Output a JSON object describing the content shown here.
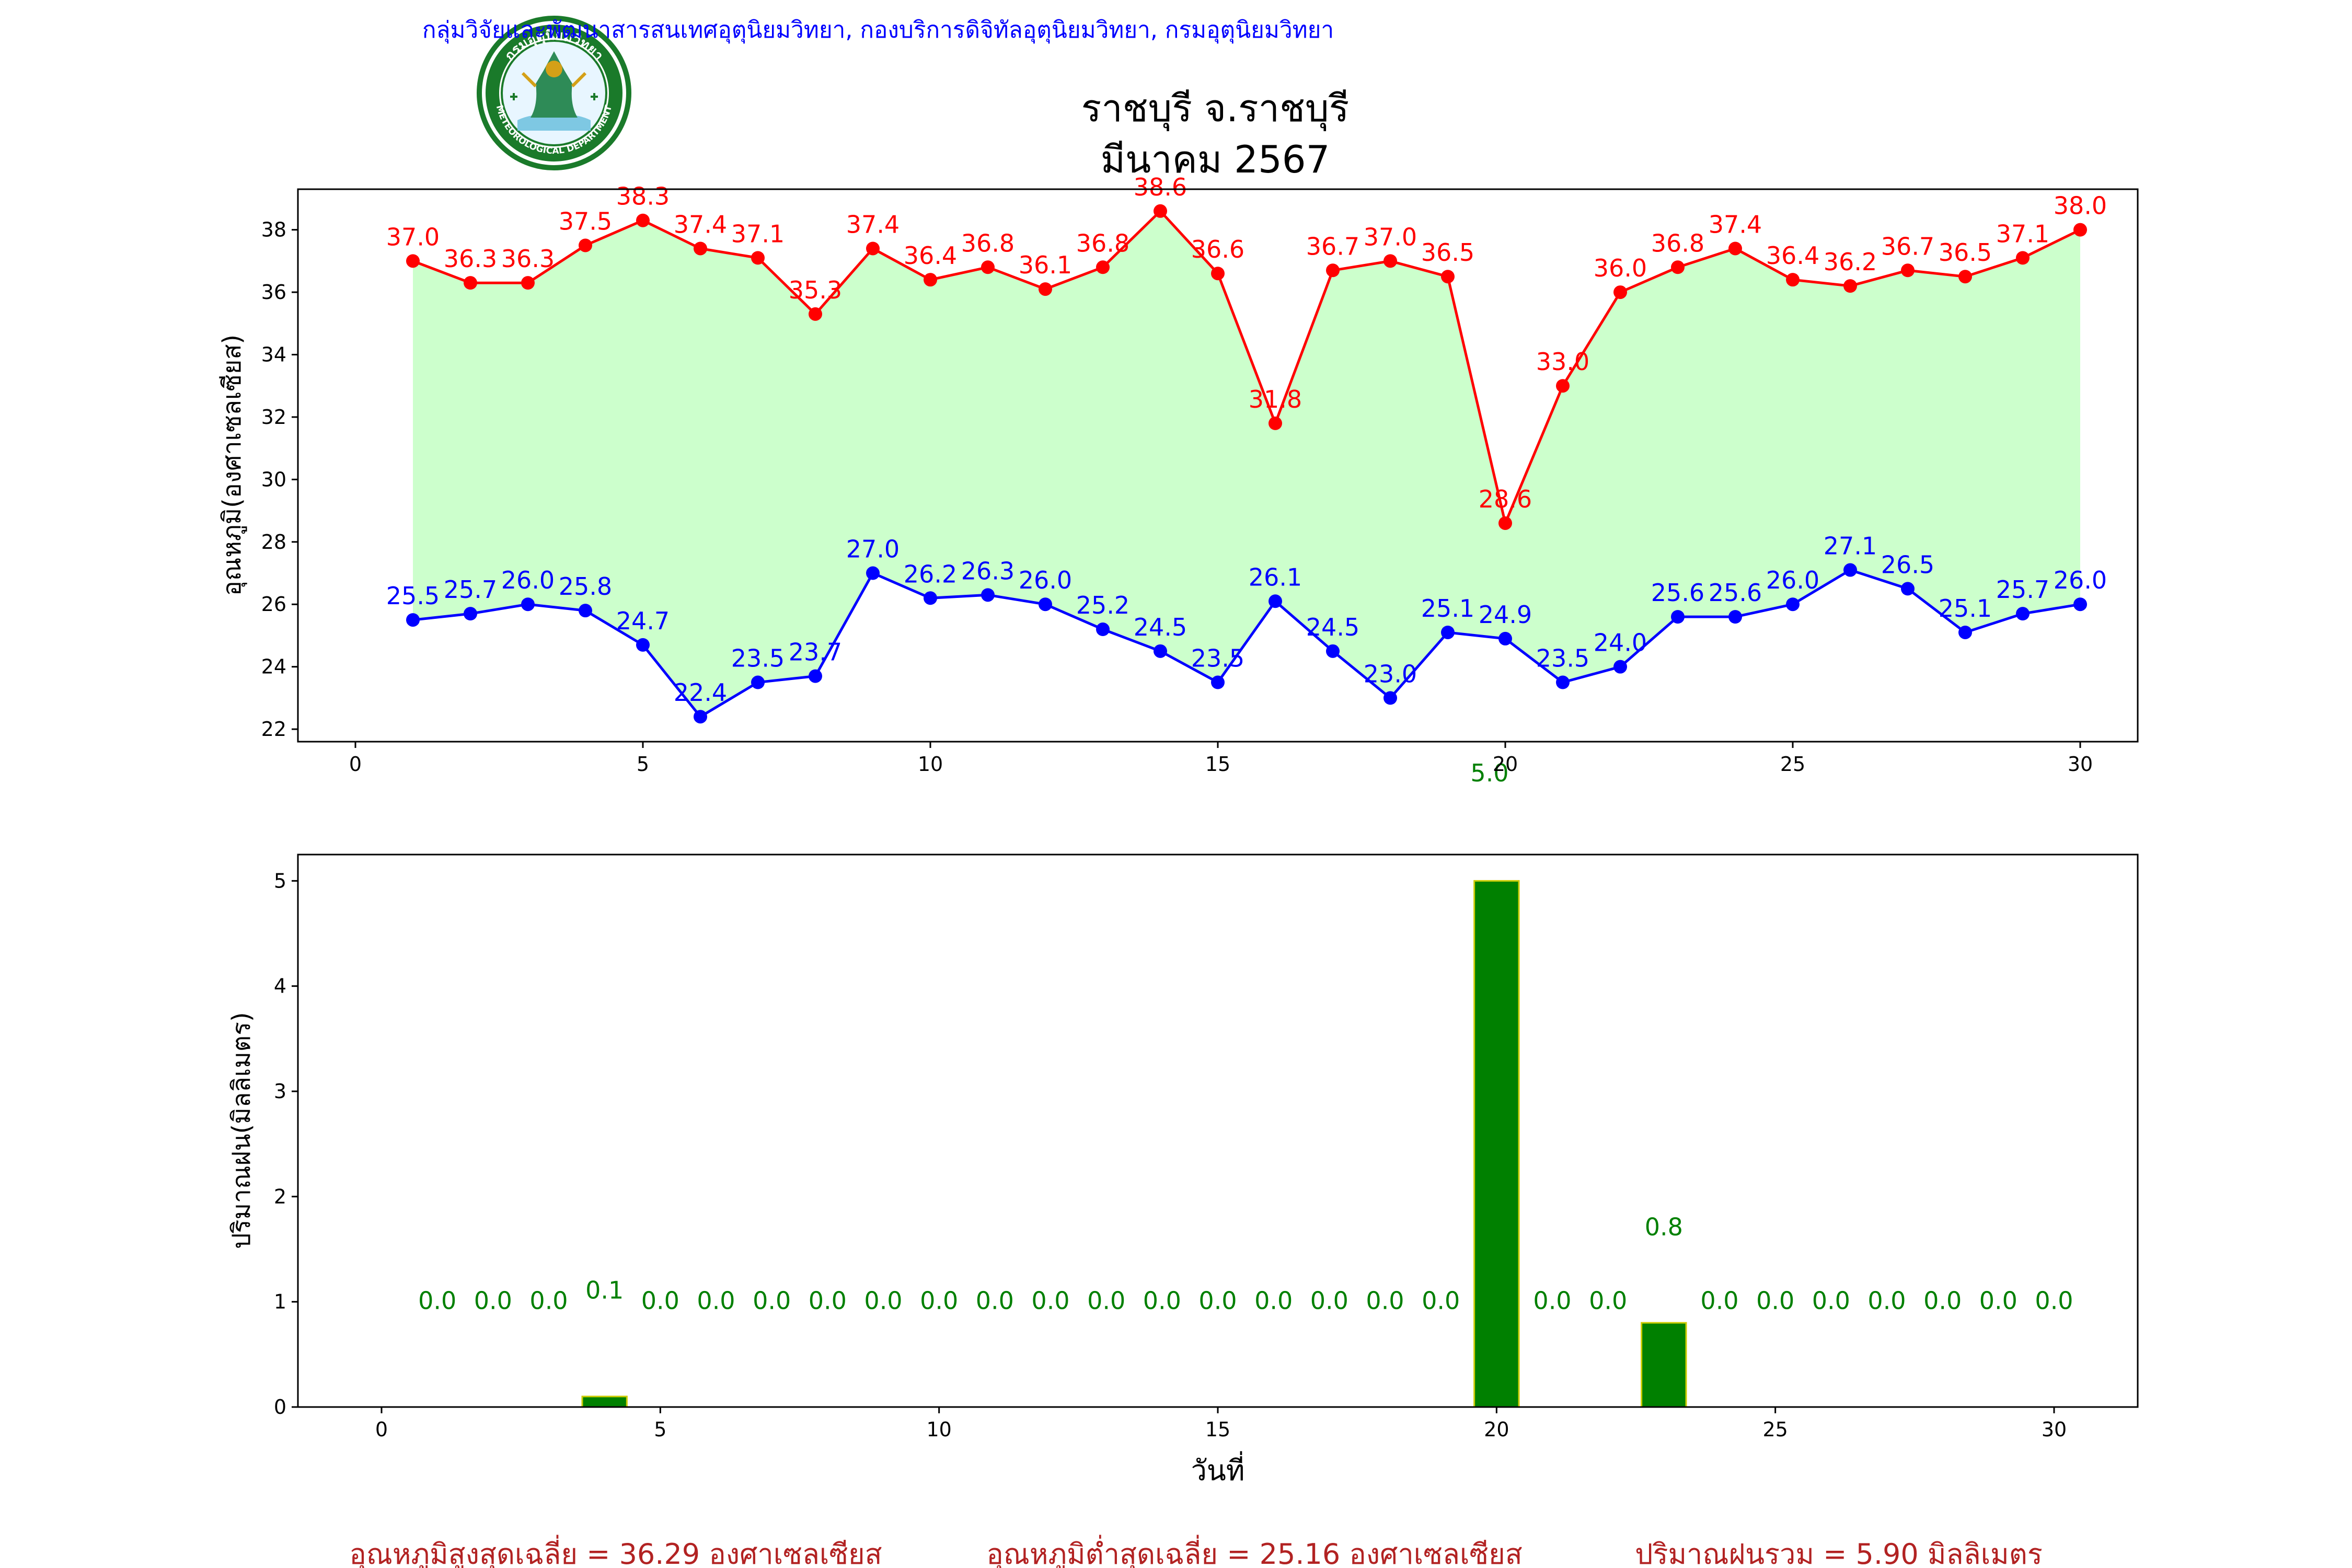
{
  "header": {
    "department_line": "กลุ่มวิจัยและพัฒนาสารสนเทศอุตุนิยมวิทยา, กองบริการดิจิทัลอุตุนิยมวิทยา, กรมอุตุนิยมวิทยา",
    "station_title": "ราชบุรี จ.ราชบุรี",
    "month_title": "มีนาคม 2567"
  },
  "logo": {
    "top_text": "กรมอุตุนิยมวิทยา",
    "bottom_text": "METEOROLOGICAL DEPARTMENT",
    "ring_color": "#1a7a2a",
    "figure_color": "#2e8b57"
  },
  "chart_data": [
    {
      "type": "line",
      "ylabel": "อุณหภูมิ(องศาเซลเซียส)",
      "xlim": [
        -1,
        31
      ],
      "ylim": [
        21.6,
        39.3
      ],
      "xticks": [
        0,
        5,
        10,
        15,
        20,
        25,
        30
      ],
      "yticks": [
        22,
        24,
        26,
        28,
        30,
        32,
        34,
        36,
        38
      ],
      "fill_between": true,
      "fill_color": "#ccffcc",
      "x": [
        1,
        2,
        3,
        4,
        5,
        6,
        7,
        8,
        9,
        10,
        11,
        12,
        13,
        14,
        15,
        16,
        17,
        18,
        19,
        20,
        21,
        22,
        23,
        24,
        25,
        26,
        27,
        28,
        29,
        30
      ],
      "series": [
        {
          "color": "#ff0000",
          "values": [
            37.0,
            36.3,
            36.3,
            37.5,
            38.3,
            37.4,
            37.1,
            35.3,
            37.4,
            36.4,
            36.8,
            36.1,
            36.8,
            38.6,
            36.6,
            31.8,
            36.7,
            37.0,
            36.5,
            28.6,
            33.0,
            36.0,
            36.8,
            37.4,
            36.4,
            36.2,
            36.7,
            36.5,
            37.1,
            38.0
          ]
        },
        {
          "color": "#0000ff",
          "values": [
            25.5,
            25.7,
            26.0,
            25.8,
            24.7,
            22.4,
            23.5,
            23.7,
            27.0,
            26.2,
            26.3,
            26.0,
            25.2,
            24.5,
            23.5,
            26.1,
            24.5,
            23.0,
            25.1,
            24.9,
            23.5,
            24.0,
            25.6,
            25.6,
            26.0,
            27.1,
            26.5,
            25.1,
            25.7,
            26.0
          ]
        }
      ],
      "extra_label": {
        "x": 20,
        "text": "5.0",
        "color": "#008000"
      }
    },
    {
      "type": "bar",
      "ylabel": "ปริมาณฝน(มิลลิเมตร)",
      "xlabel": "วันที่",
      "xlim": [
        -1.5,
        31.5
      ],
      "ylim": [
        0,
        5.25
      ],
      "xticks": [
        0,
        5,
        10,
        15,
        20,
        25,
        30
      ],
      "yticks": [
        0,
        1,
        2,
        3,
        4,
        5
      ],
      "bar_color": "#008000",
      "bar_edge_color": "#cccc00",
      "label_color": "#008000",
      "categories": [
        1,
        2,
        3,
        4,
        5,
        6,
        7,
        8,
        9,
        10,
        11,
        12,
        13,
        14,
        15,
        16,
        17,
        18,
        19,
        20,
        21,
        22,
        23,
        24,
        25,
        26,
        27,
        28,
        29,
        30
      ],
      "values": [
        0.0,
        0.0,
        0.0,
        0.1,
        0.0,
        0.0,
        0.0,
        0.0,
        0.0,
        0.0,
        0.0,
        0.0,
        0.0,
        0.0,
        0.0,
        0.0,
        0.0,
        0.0,
        0.0,
        5.0,
        0.0,
        0.0,
        0.8,
        0.0,
        0.0,
        0.0,
        0.0,
        0.0,
        0.0,
        0.0
      ]
    }
  ],
  "footer": {
    "color": "#b22222",
    "avg_max": "อุณหภูมิสูงสุดเฉลี่ย = 36.29 องศาเซลเซียส",
    "avg_min": "อุณหภูมิต่ำสุดเฉลี่ย = 25.16 องศาเซลเซียส",
    "total_rain": "ปริมาณฝนรวม = 5.90 มิลลิเมตร"
  }
}
